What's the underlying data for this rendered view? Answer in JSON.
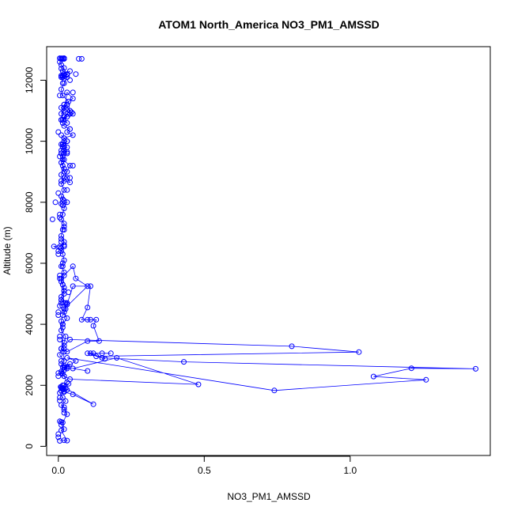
{
  "chart_data": {
    "type": "scatter",
    "title": "ATOM1 North_America NO3_PM1_AMSSD",
    "xlabel": "NO3_PM1_AMSSD",
    "ylabel": "Altitude (m)",
    "xlim": [
      -0.04,
      1.48
    ],
    "ylim": [
      -300,
      13100
    ],
    "x_ticks": [
      0,
      0.5,
      1.0
    ],
    "x_tick_labels": [
      "0.0",
      "0.5",
      "1.0"
    ],
    "y_ticks": [
      0,
      2000,
      4000,
      6000,
      8000,
      10000,
      12000
    ],
    "y_tick_labels": [
      "0",
      "2000",
      "4000",
      "6000",
      "8000",
      "10000",
      "12000"
    ],
    "grid": false,
    "legend": "none",
    "series": [
      {
        "color": "#0000ff",
        "marker": "open-circle",
        "connected": true,
        "x": [
          0.005,
          0.02,
          0.03,
          0.01,
          0.02,
          0.005,
          0.015,
          0.03,
          0.02,
          0.01,
          0.025,
          0.015,
          0.005,
          0.02,
          0.03,
          0.012,
          0.008,
          0.02,
          0.035,
          0.015,
          0.01,
          0.025,
          0.12,
          0.05,
          0.02,
          0.01,
          0.03,
          0.02,
          0.015,
          0.01,
          0.02,
          0.03,
          0.015,
          0.02,
          0.04,
          0.02,
          0.1,
          0.05,
          0.2,
          0.48,
          0.04,
          0.02,
          0.01,
          0.03,
          0.06,
          0.03,
          0.74,
          1.26,
          1.08,
          1.21,
          1.43,
          0.43,
          0.15,
          0.1,
          0.18,
          0.15,
          0.12,
          0.11,
          0.16,
          0.13,
          1.03,
          0.8,
          0.04,
          0.02,
          0.01,
          0.03,
          0.1,
          0.14,
          0.12,
          0.13,
          0.11,
          0.1,
          0.08,
          0.1,
          0.11,
          0.05,
          0.03,
          0.02,
          0.1,
          0.06,
          0.05,
          0.02,
          0.01,
          0.015,
          0.02,
          0.01,
          0.005,
          0.02,
          0.03,
          0.015,
          0.01,
          0.025,
          0.02,
          0.01,
          0.005,
          0.02,
          0.01,
          0.015,
          0.025,
          0.02,
          0.01,
          0.02,
          0.015,
          0.01,
          0.02,
          0.01,
          0.02,
          0.015,
          0.01,
          0.005,
          0.02,
          -0.015,
          0.01,
          0.02,
          0.01,
          0.015,
          0.02,
          0.01,
          0.015,
          0.02,
          0.03,
          0.01,
          0.02,
          0.015,
          0.01,
          0.02,
          0.01,
          0.02,
          0.03,
          0.04,
          0.015,
          0.01,
          0.02,
          0.015,
          0.01,
          0.02,
          0.01,
          0.02,
          0.04,
          0.03,
          0.02,
          0.015,
          0.02,
          0.01,
          0.03,
          0.015,
          0.02,
          0.01,
          0.03,
          0.02,
          0.01,
          0.02,
          0.03,
          0.02,
          0.015,
          0.01,
          0.03,
          0.02,
          0.05,
          0.03,
          0.04,
          0.02,
          0.015,
          0.01,
          0.03,
          0.05,
          0.02,
          0.01,
          0.03,
          0.04,
          0.02,
          0.015,
          0.03,
          0.02,
          0.04,
          0.02,
          0.05,
          0.03,
          0.02,
          0.01,
          0.03,
          0.02,
          0.04,
          0.035,
          0.015,
          0.01,
          0.02,
          0.03,
          0.015,
          0.02,
          0.01,
          0.015,
          0.02,
          0.04,
          0.03,
          0.02,
          0.01,
          0.02,
          0.03,
          0.015,
          0.02,
          0.01,
          0.005,
          0.02,
          0.01,
          0.015,
          0.02,
          0.01,
          0.015,
          0.02,
          0.01,
          0.005,
          0.01,
          0.015,
          0.02,
          0.01,
          0.005
        ],
        "y": [
          180,
          200,
          190,
          520,
          560,
          820,
          780,
          1050,
          1280,
          1350,
          1480,
          1600,
          1750,
          1800,
          1850,
          1900,
          1950,
          2000,
          2050,
          1870,
          1820,
          1900,
          1380,
          1700,
          1780,
          1930,
          2100,
          2300,
          2380,
          2450,
          2500,
          2550,
          2600,
          2650,
          2700,
          2600,
          2470,
          2550,
          2900,
          2030,
          2200,
          2300,
          2400,
          2600,
          2800,
          2900,
          1830,
          2180,
          2290,
          2560,
          2540,
          2770,
          2900,
          3050,
          3050,
          3050,
          3050,
          3050,
          2870,
          2950,
          3090,
          3280,
          3500,
          3300,
          3200,
          3100,
          3450,
          3450,
          3950,
          4150,
          4150,
          4150,
          4150,
          4550,
          5250,
          5250,
          4650,
          4500,
          5250,
          5500,
          5900,
          5600,
          5400,
          5300,
          5000,
          4800,
          4600,
          4400,
          4200,
          4000,
          3800,
          3600,
          3400,
          3200,
          3000,
          2800,
          4100,
          4300,
          4500,
          4700,
          4900,
          5100,
          5300,
          5500,
          5700,
          5900,
          6100,
          6300,
          6500,
          6550,
          6600,
          6550,
          6400,
          6700,
          6900,
          7100,
          7300,
          7440,
          7600,
          7800,
          8000,
          7950,
          8050,
          8100,
          8200,
          8400,
          8600,
          8800,
          9000,
          9200,
          9400,
          9600,
          9700,
          9500,
          9300,
          9100,
          8900,
          8700,
          8650,
          8800,
          9000,
          9200,
          9400,
          9600,
          9800,
          9900,
          10100,
          10200,
          10000,
          9850,
          9700,
          9600,
          9650,
          9700,
          9800,
          9900,
          10000,
          10100,
          10200,
          10300,
          10400,
          10500,
          10600,
          10700,
          10800,
          10900,
          11000,
          11100,
          11200,
          10900,
          10800,
          10700,
          10600,
          10800,
          11000,
          11200,
          11400,
          11600,
          11000,
          10900,
          11200,
          11100,
          10900,
          11300,
          11500,
          11700,
          11900,
          12100,
          12150,
          12200,
          12150,
          12100,
          12200,
          12300,
          12200,
          12150,
          12100,
          12050,
          12200,
          12300,
          12400,
          12500,
          12600,
          12700,
          12720,
          12700,
          12720,
          12700,
          12720,
          12700,
          12700,
          12720,
          12700,
          12700,
          12720,
          12700,
          12720
        ]
      },
      {
        "color": "#0000ff",
        "marker": "open-circle",
        "connected": false,
        "x": [
          0.0,
          0.01,
          0.02,
          0.005,
          0.015,
          0.0,
          0.01,
          0.02,
          0.005,
          0.015,
          0.0,
          0.01,
          0.02,
          0.005,
          0.015,
          0.0,
          0.01,
          0.02,
          0.005,
          0.015,
          0.0,
          0.01,
          0.02,
          0.005,
          0.015,
          0.0,
          0.01,
          0.02,
          0.005,
          0.015,
          0.0,
          0.01,
          0.02,
          0.005,
          0.015,
          0.0,
          0.01,
          0.02,
          0.005,
          0.015,
          0.0,
          0.01,
          0.02,
          0.005,
          0.015,
          0.0,
          0.01,
          0.02,
          0.005,
          0.015,
          0.03,
          0.04,
          0.05,
          0.03,
          0.02,
          0.04,
          0.03,
          0.02,
          0.05,
          0.04,
          0.06,
          0.07,
          0.08,
          0.03,
          0.02,
          0.01,
          -0.02,
          -0.01,
          0.02,
          0.035,
          0.025,
          0.03,
          0.045,
          0.02,
          0.01
        ],
        "y": [
          300,
          700,
          1100,
          1500,
          1900,
          2300,
          2700,
          3100,
          3500,
          3900,
          4300,
          4700,
          5100,
          5500,
          5900,
          6300,
          6700,
          7100,
          7500,
          7900,
          8300,
          8700,
          9100,
          9500,
          9900,
          10300,
          10700,
          11100,
          11500,
          11900,
          400,
          800,
          1200,
          1600,
          2000,
          2400,
          2800,
          3200,
          3600,
          4000,
          4400,
          4800,
          5200,
          5600,
          6000,
          6400,
          6800,
          7200,
          7600,
          8000,
          8400,
          8800,
          9200,
          9600,
          10000,
          10400,
          10800,
          11200,
          11600,
          12000,
          12200,
          12700,
          12700,
          12180,
          12720,
          12150,
          7440,
          8000,
          6550,
          5050,
          4700,
          4700,
          10950,
          10850,
          12380
        ]
      }
    ]
  }
}
